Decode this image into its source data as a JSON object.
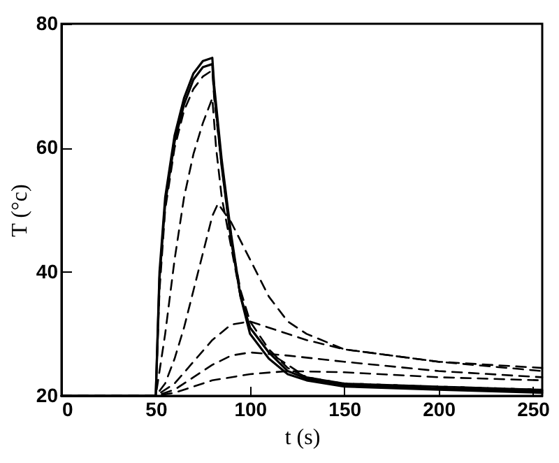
{
  "chart_data": {
    "type": "line",
    "xlabel": "t (s)",
    "ylabel": "T (°c)",
    "xlim": [
      0,
      255
    ],
    "ylim": [
      20,
      80
    ],
    "xticks": [
      0,
      50,
      100,
      150,
      200,
      250
    ],
    "yticks": [
      20,
      40,
      60,
      80
    ],
    "grid": false,
    "marker": "none",
    "series": [
      {
        "color": "#000000",
        "line_style": "solid",
        "x": [
          0,
          50,
          52,
          55,
          60,
          65,
          70,
          75,
          80,
          81,
          85,
          90,
          95,
          100,
          110,
          120,
          130,
          150,
          200,
          255
        ],
        "values": [
          20,
          20,
          40,
          52,
          62,
          68,
          72,
          74,
          74.5,
          70,
          58,
          46,
          36,
          30,
          26,
          23.5,
          22.5,
          21.5,
          21,
          20.5
        ]
      },
      {
        "color": "#000000",
        "line_style": "solid",
        "x": [
          0,
          50,
          52,
          55,
          60,
          65,
          70,
          75,
          80,
          81,
          85,
          90,
          95,
          100,
          110,
          120,
          130,
          150,
          200,
          255
        ],
        "values": [
          20,
          20,
          39,
          51,
          61,
          67,
          71,
          73,
          73.5,
          69,
          57,
          45,
          36,
          31,
          27,
          24,
          22.8,
          21.8,
          21.2,
          20.8
        ]
      },
      {
        "color": "#000000",
        "line_style": "dashed",
        "x": [
          0,
          50,
          52,
          55,
          60,
          65,
          70,
          75,
          80,
          81,
          85,
          90,
          95,
          100,
          110,
          120,
          130,
          150,
          200,
          255
        ],
        "values": [
          20,
          20,
          37,
          50,
          60,
          66,
          69.5,
          71.5,
          72.5,
          68,
          57,
          45,
          37,
          32,
          27.5,
          24.5,
          23,
          22,
          21.5,
          21
        ]
      },
      {
        "color": "#000000",
        "line_style": "dashed",
        "x": [
          0,
          50,
          55,
          60,
          65,
          70,
          75,
          80,
          82,
          85,
          90,
          95,
          100,
          110,
          130,
          150,
          200,
          255
        ],
        "values": [
          20,
          20,
          30,
          42,
          52,
          59,
          64,
          68,
          60,
          52,
          44,
          36,
          31,
          27,
          23,
          22,
          21.5,
          21
        ]
      },
      {
        "color": "#000000",
        "line_style": "dashed",
        "x": [
          0,
          50,
          55,
          60,
          65,
          70,
          75,
          80,
          83,
          90,
          100,
          110,
          120,
          130,
          150,
          200,
          255
        ],
        "values": [
          20,
          20,
          22,
          26,
          31,
          37,
          43,
          49,
          51,
          48,
          42,
          36,
          32,
          30,
          27.5,
          25.5,
          24.5
        ]
      },
      {
        "color": "#000000",
        "line_style": "dashed",
        "x": [
          0,
          50,
          60,
          70,
          80,
          90,
          100,
          110,
          130,
          150,
          200,
          255
        ],
        "values": [
          20,
          20,
          22,
          25.5,
          29,
          31.5,
          32,
          31,
          29,
          27.5,
          25.5,
          24
        ]
      },
      {
        "color": "#000000",
        "line_style": "dashed",
        "x": [
          0,
          50,
          60,
          70,
          80,
          90,
          100,
          120,
          150,
          200,
          255
        ],
        "values": [
          20,
          20,
          21,
          23,
          25,
          26.5,
          27,
          26.5,
          25.5,
          24,
          23
        ]
      },
      {
        "color": "#000000",
        "line_style": "dashed",
        "x": [
          0,
          50,
          60,
          70,
          80,
          100,
          120,
          150,
          200,
          255
        ],
        "values": [
          20,
          20,
          20.5,
          21.5,
          22.5,
          23.5,
          24,
          23.8,
          23,
          22.5
        ]
      }
    ]
  }
}
